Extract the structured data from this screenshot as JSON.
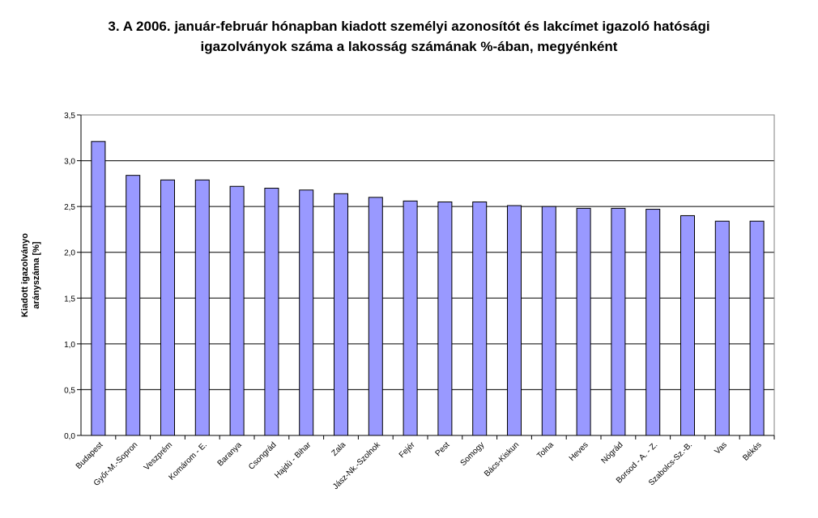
{
  "chart_data": {
    "type": "bar",
    "title_lines": [
      "3. A 2006. január-február hónapban  kiadott személyi azonosítót és lakcímet igazoló hatósági",
      "igazolványok száma a lakosság  számának %-ában, megyénként"
    ],
    "ylabel_lines": [
      "Kiadott igazolványo",
      "arányszáma [%]"
    ],
    "xlabel": "",
    "categories": [
      "Budapest",
      "Győr-M.-Sopron",
      "Veszprém",
      "Komárom - E.",
      "Baranya",
      "Csongrád",
      "Hajdú - Bihar",
      "Zala",
      "Jász-Nk.-Szolnok",
      "Fejér",
      "Pest",
      "Somogy",
      "Bács-Kiskun",
      "Tolna",
      "Heves",
      "Nógrád",
      "Borsod - A. - Z.",
      "Szabolcs-Sz.-B.",
      "Vas",
      "Békés"
    ],
    "values": [
      3.21,
      2.84,
      2.79,
      2.79,
      2.72,
      2.7,
      2.68,
      2.64,
      2.6,
      2.56,
      2.55,
      2.55,
      2.51,
      2.5,
      2.48,
      2.48,
      2.47,
      2.4,
      2.34,
      2.34
    ],
    "yticks": [
      "0,0",
      "0,5",
      "1,0",
      "1,5",
      "2,0",
      "2,5",
      "3,0",
      "3,5"
    ],
    "ylim": [
      0,
      3.5
    ],
    "grid": true,
    "legend": "none",
    "colors": {
      "bar_fill": "#9999ff",
      "bar_stroke": "#000000",
      "grid": "#000000",
      "axis": "#808080"
    }
  }
}
